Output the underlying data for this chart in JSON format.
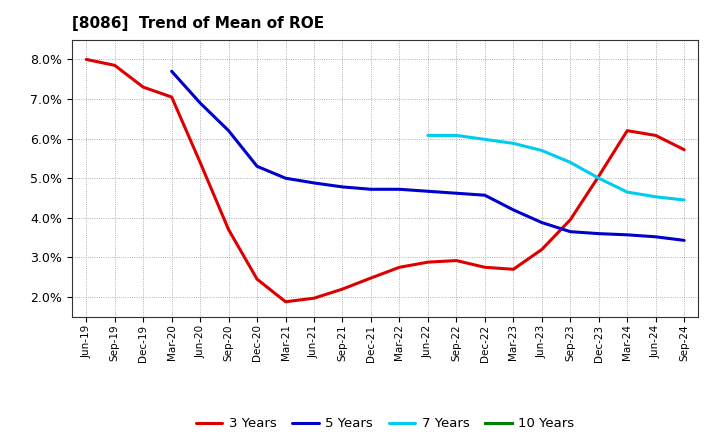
{
  "title": "[8086]  Trend of Mean of ROE",
  "x_labels": [
    "Jun-19",
    "Sep-19",
    "Dec-19",
    "Mar-20",
    "Jun-20",
    "Sep-20",
    "Dec-20",
    "Mar-21",
    "Jun-21",
    "Sep-21",
    "Dec-21",
    "Mar-22",
    "Jun-22",
    "Sep-22",
    "Dec-22",
    "Mar-23",
    "Jun-23",
    "Sep-23",
    "Dec-23",
    "Mar-24",
    "Jun-24",
    "Sep-24"
  ],
  "series": {
    "3 Years": {
      "color": "#dd0000",
      "data": [
        8.0,
        7.85,
        7.3,
        7.05,
        5.4,
        3.7,
        2.45,
        1.88,
        1.97,
        2.2,
        2.48,
        2.75,
        2.88,
        2.92,
        2.75,
        2.7,
        3.2,
        3.95,
        5.05,
        6.2,
        6.08,
        5.72
      ]
    },
    "5 Years": {
      "color": "#0000cc",
      "data": [
        null,
        null,
        null,
        7.7,
        6.9,
        6.2,
        5.3,
        5.0,
        4.88,
        4.78,
        4.72,
        4.72,
        4.67,
        4.62,
        4.57,
        4.2,
        3.88,
        3.65,
        3.6,
        3.57,
        3.52,
        3.43
      ]
    },
    "7 Years": {
      "color": "#00ccee",
      "data": [
        null,
        null,
        null,
        null,
        null,
        null,
        null,
        null,
        null,
        null,
        null,
        null,
        6.08,
        6.08,
        5.98,
        5.88,
        5.7,
        5.4,
        5.0,
        4.65,
        4.53,
        4.45
      ]
    },
    "10 Years": {
      "color": "#008000",
      "data": [
        null,
        null,
        null,
        null,
        null,
        null,
        null,
        null,
        null,
        null,
        null,
        null,
        null,
        null,
        null,
        null,
        null,
        null,
        null,
        null,
        null,
        null
      ]
    }
  },
  "ylim": [
    1.5,
    8.5
  ],
  "yticks": [
    2.0,
    3.0,
    4.0,
    5.0,
    6.0,
    7.0,
    8.0
  ],
  "background_color": "#ffffff",
  "grid_color": "#999999",
  "title_fontsize": 11,
  "line_width": 2.2
}
